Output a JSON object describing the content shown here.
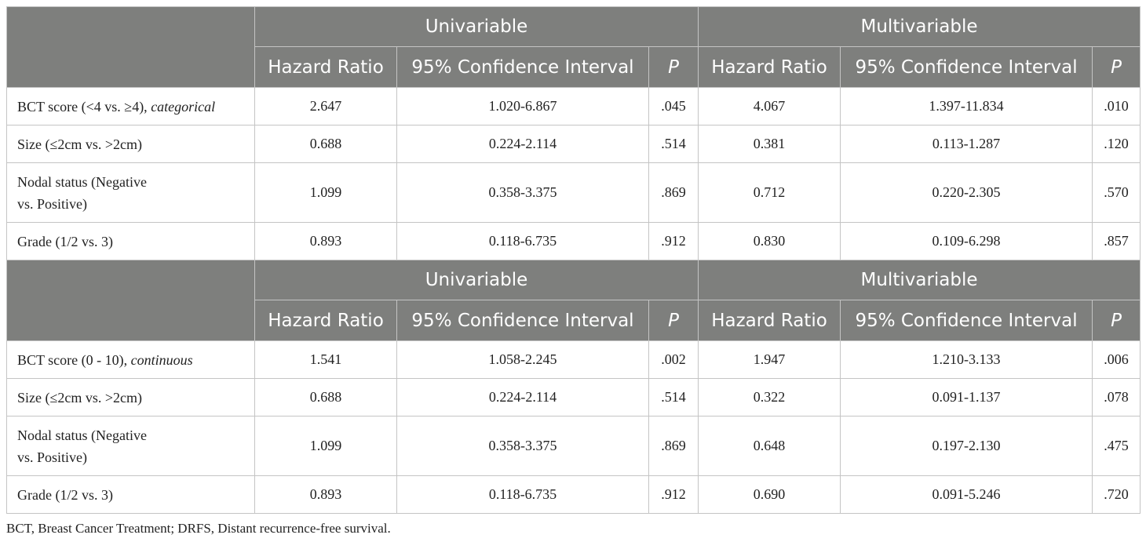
{
  "section1": {
    "header": {
      "group1": "Univariable",
      "group2": "Multivariable",
      "cols": [
        "Hazard Ratio",
        "95% Confidence Interval",
        "P",
        "Hazard Ratio",
        "95% Confidence Interval",
        "P"
      ]
    },
    "rows": [
      {
        "label": "BCT score (<4 vs. ≥4), ",
        "label_note": "categorical",
        "uni_hr": "2.647",
        "uni_ci": "1.020-6.867",
        "uni_p": ".045",
        "multi_hr": "4.067",
        "multi_ci": "1.397-11.834",
        "multi_p": ".010"
      },
      {
        "label": "Size (≤2cm vs. >2cm)",
        "label_note": "",
        "uni_hr": "0.688",
        "uni_ci": "0.224-2.114",
        "uni_p": ".514",
        "multi_hr": "0.381",
        "multi_ci": "0.113-1.287",
        "multi_p": ".120"
      },
      {
        "label_line1": "Nodal status (Negative",
        "label_line2": "vs. Positive)",
        "uni_hr": "1.099",
        "uni_ci": "0.358-3.375",
        "uni_p": ".869",
        "multi_hr": "0.712",
        "multi_ci": "0.220-2.305",
        "multi_p": ".570"
      },
      {
        "label": "Grade (1/2 vs. 3)",
        "label_note": "",
        "uni_hr": "0.893",
        "uni_ci": "0.118-6.735",
        "uni_p": ".912",
        "multi_hr": "0.830",
        "multi_ci": "0.109-6.298",
        "multi_p": ".857"
      }
    ]
  },
  "section2": {
    "header": {
      "group1": "Univariable",
      "group2": "Multivariable",
      "cols": [
        "Hazard Ratio",
        "95% Confidence Interval",
        "P",
        "Hazard Ratio",
        "95% Confidence Interval",
        "P"
      ]
    },
    "rows": [
      {
        "label": "BCT score (0 - 10), ",
        "label_note": "continuous",
        "uni_hr": "1.541",
        "uni_ci": "1.058-2.245",
        "uni_p": ".002",
        "multi_hr": "1.947",
        "multi_ci": "1.210-3.133",
        "multi_p": ".006"
      },
      {
        "label": "Size (≤2cm vs. >2cm)",
        "label_note": "",
        "uni_hr": "0.688",
        "uni_ci": "0.224-2.114",
        "uni_p": ".514",
        "multi_hr": "0.322",
        "multi_ci": "0.091-1.137",
        "multi_p": ".078"
      },
      {
        "label_line1": "Nodal status (Negative",
        "label_line2": "vs. Positive)",
        "uni_hr": "1.099",
        "uni_ci": "0.358-3.375",
        "uni_p": ".869",
        "multi_hr": "0.648",
        "multi_ci": "0.197-2.130",
        "multi_p": ".475"
      },
      {
        "label": "Grade (1/2 vs. 3)",
        "label_note": "",
        "uni_hr": "0.893",
        "uni_ci": "0.118-6.735",
        "uni_p": ".912",
        "multi_hr": "0.690",
        "multi_ci": "0.091-5.246",
        "multi_p": ".720"
      }
    ]
  },
  "footnote": "BCT, Breast Cancer Treatment; DRFS, Distant recurrence-free survival.",
  "colors": {
    "header_bg": "#7e7f7d",
    "header_text": "#ffffff",
    "border": "#c4c4c4"
  }
}
